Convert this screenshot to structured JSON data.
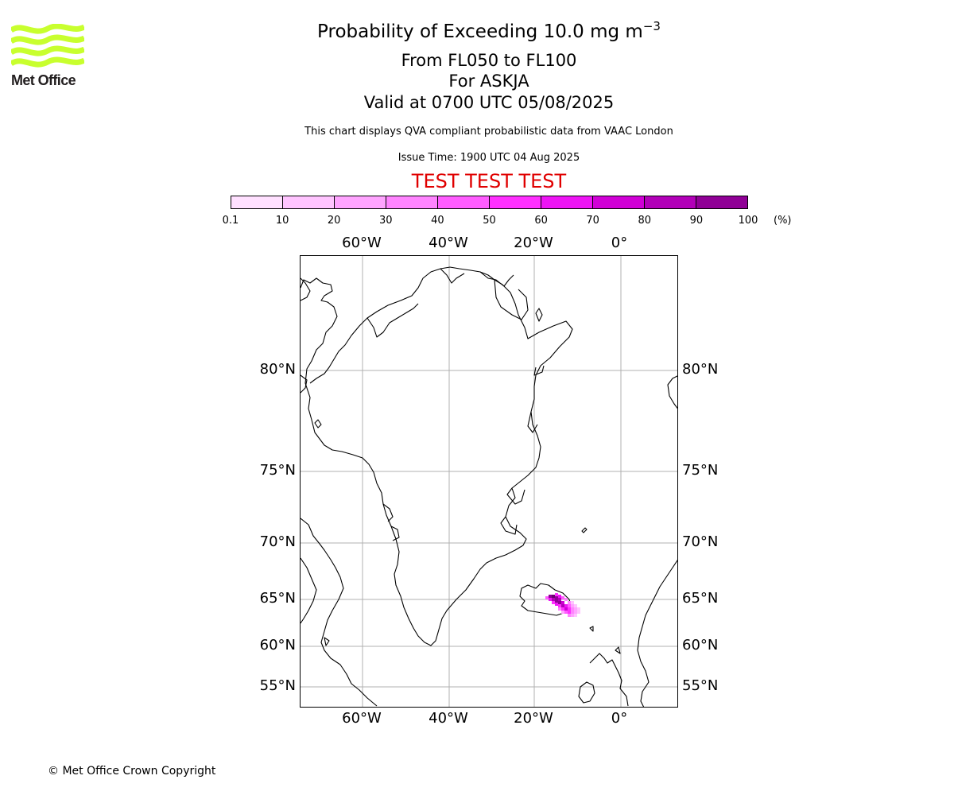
{
  "logo": {
    "text": "Met Office",
    "color": "#c8ff2e"
  },
  "title": {
    "main": "Probability of Exceeding 10.0 mg m",
    "main_sup": "−3",
    "line1": "From FL050 to FL100",
    "line2": "For ASKJA",
    "line3": "Valid at 0700 UTC 05/08/2025",
    "subtitle": "This chart displays QVA compliant probabilistic data from VAAC London",
    "issue": "Issue Time: 1900 UTC 04 Aug 2025",
    "test": "TEST TEST TEST"
  },
  "colorbar": {
    "ticks": [
      "0.1",
      "10",
      "20",
      "30",
      "40",
      "50",
      "60",
      "70",
      "80",
      "90",
      "100"
    ],
    "unit": "(%)",
    "colors": [
      "#ffe0ff",
      "#ffc4ff",
      "#ffa4ff",
      "#ff84ff",
      "#ff5cff",
      "#ff2fff",
      "#ee14f5",
      "#d000d6",
      "#b200b8",
      "#900096",
      "#6a0070"
    ]
  },
  "map": {
    "longitude_labels": [
      "60°W",
      "40°W",
      "20°W",
      "0°"
    ],
    "latitude_labels": [
      "80°N",
      "75°N",
      "70°N",
      "65°N",
      "60°N",
      "55°N"
    ],
    "volcano": "ASKJA",
    "gridline_color": "#b0b0b0",
    "coast_color": "#000000"
  },
  "footer": {
    "copyright": "© Met Office Crown Copyright"
  }
}
